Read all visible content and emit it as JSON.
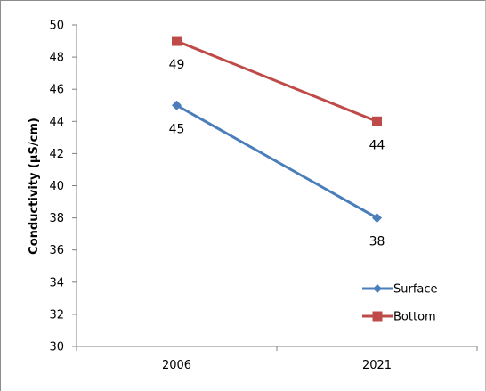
{
  "chart_data": {
    "type": "line",
    "title": "",
    "xlabel": "",
    "ylabel": "Conductivity (µS/cm)",
    "categories": [
      "2006",
      "2021"
    ],
    "ylim": [
      30,
      50
    ],
    "yticks": [
      "30",
      "32",
      "34",
      "36",
      "38",
      "40",
      "42",
      "44",
      "46",
      "48",
      "50"
    ],
    "grid": false,
    "legend_position": "bottom-right",
    "series": [
      {
        "name": "Surface",
        "values": [
          45,
          38
        ],
        "color": "#4a7ebb",
        "marker": "diamond",
        "labels": [
          "45",
          "38"
        ]
      },
      {
        "name": "Bottom",
        "values": [
          49,
          44
        ],
        "color": "#be4b48",
        "marker": "square",
        "labels": [
          "49",
          "44"
        ]
      }
    ]
  }
}
